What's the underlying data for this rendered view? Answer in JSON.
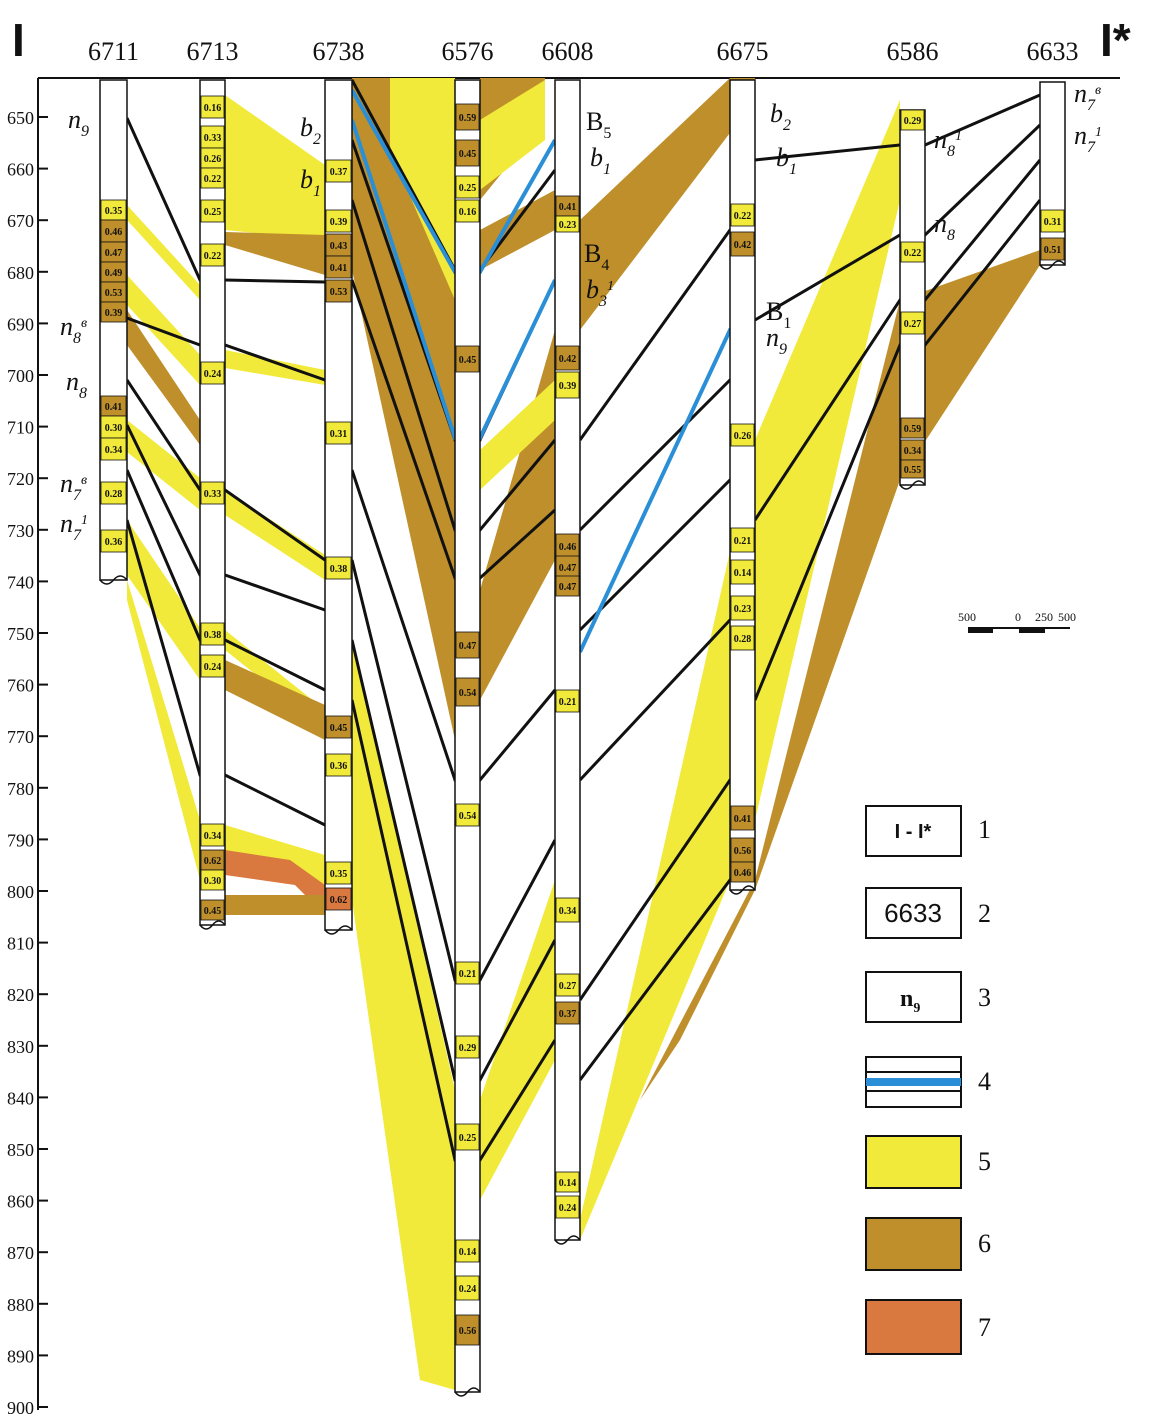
{
  "section": {
    "start_marker": "I",
    "end_marker": "I*",
    "wells": [
      "6711",
      "6713",
      "6738",
      "6576",
      "6608",
      "6675",
      "6586",
      "6633"
    ],
    "depth_ticks": [
      "650",
      "660",
      "670",
      "680",
      "690",
      "700",
      "710",
      "720",
      "730",
      "740",
      "750",
      "760",
      "770",
      "780",
      "790",
      "800",
      "810",
      "820",
      "830",
      "840",
      "850",
      "860",
      "870",
      "880",
      "890",
      "900"
    ]
  },
  "well_values": {
    "6711": [
      "0.35",
      "0.46",
      "0.47",
      "0.49",
      "0.53",
      "0.39",
      "0.41",
      "0.30",
      "0.34",
      "0.28",
      "0.36"
    ],
    "6713": [
      "0.16",
      "0.33",
      "0.26",
      "0.22",
      "0.25",
      "0.22",
      "0.24",
      "0.33",
      "0.38",
      "0.24",
      "0.34",
      "0.62",
      "0.30",
      "0.45"
    ],
    "6738": [
      "0.37",
      "0.39",
      "0.43",
      "0.41",
      "0.53",
      "0.31",
      "0.38",
      "0.45",
      "0.36",
      "0.35",
      "0.62"
    ],
    "6576": [
      "0.59",
      "0.45",
      "0.25",
      "0.16",
      "0.45",
      "0.47",
      "0.54",
      "0.54",
      "0.21",
      "0.29",
      "0.25",
      "0.14",
      "0.24",
      "0.56"
    ],
    "6608": [
      "0.41",
      "0.23",
      "0.42",
      "0.39",
      "0.46",
      "0.47",
      "0.47",
      "0.21",
      "0.34",
      "0.27",
      "0.37",
      "0.14",
      "0.24"
    ],
    "6675": [
      "0.22",
      "0.42",
      "0.26",
      "0.21",
      "0.14",
      "0.23",
      "0.28",
      "0.41",
      "0.56",
      "0.46"
    ],
    "6586": [
      "0.29",
      "0.22",
      "0.27",
      "0.59",
      "0.34",
      "0.55"
    ],
    "6633": [
      "0.31",
      "0.51"
    ]
  },
  "horizon_labels": {
    "n9": {
      "base": "n",
      "sub": "9",
      "sup": ""
    },
    "n8v": {
      "base": "n",
      "sub": "8",
      "sup": "в"
    },
    "n8": {
      "base": "n",
      "sub": "8",
      "sup": ""
    },
    "n7v": {
      "base": "n",
      "sub": "7",
      "sup": "в"
    },
    "n71": {
      "base": "n",
      "sub": "7",
      "sup": "1"
    },
    "b2": {
      "base": "b",
      "sub": "2",
      "sup": ""
    },
    "b1": {
      "base": "b",
      "sub": "1",
      "sup": ""
    },
    "B5": {
      "base": "B",
      "sub": "5",
      "sup": ""
    },
    "B4": {
      "base": "B",
      "sub": "4",
      "sup": ""
    },
    "b31": {
      "base": "b",
      "sub": "3",
      "sup": "1"
    },
    "B1": {
      "base": "B",
      "sub": "1",
      "sup": ""
    },
    "n81": {
      "base": "n",
      "sub": "8",
      "sup": "1"
    }
  },
  "scale_bar": {
    "labels": [
      "500",
      "0",
      "250",
      "500"
    ]
  },
  "legend": {
    "items": [
      {
        "num": "1",
        "sample": "I - I*"
      },
      {
        "num": "2",
        "sample": "6633"
      },
      {
        "num": "3",
        "sample_base": "n",
        "sample_sub": "9"
      },
      {
        "num": "4"
      },
      {
        "num": "5"
      },
      {
        "num": "6"
      },
      {
        "num": "7"
      }
    ]
  },
  "colors": {
    "sand": "#F1EA3A",
    "clay": "#BE8F2A",
    "red": "#D9783F",
    "blue": "#2A8FD6",
    "line": "#111111"
  }
}
